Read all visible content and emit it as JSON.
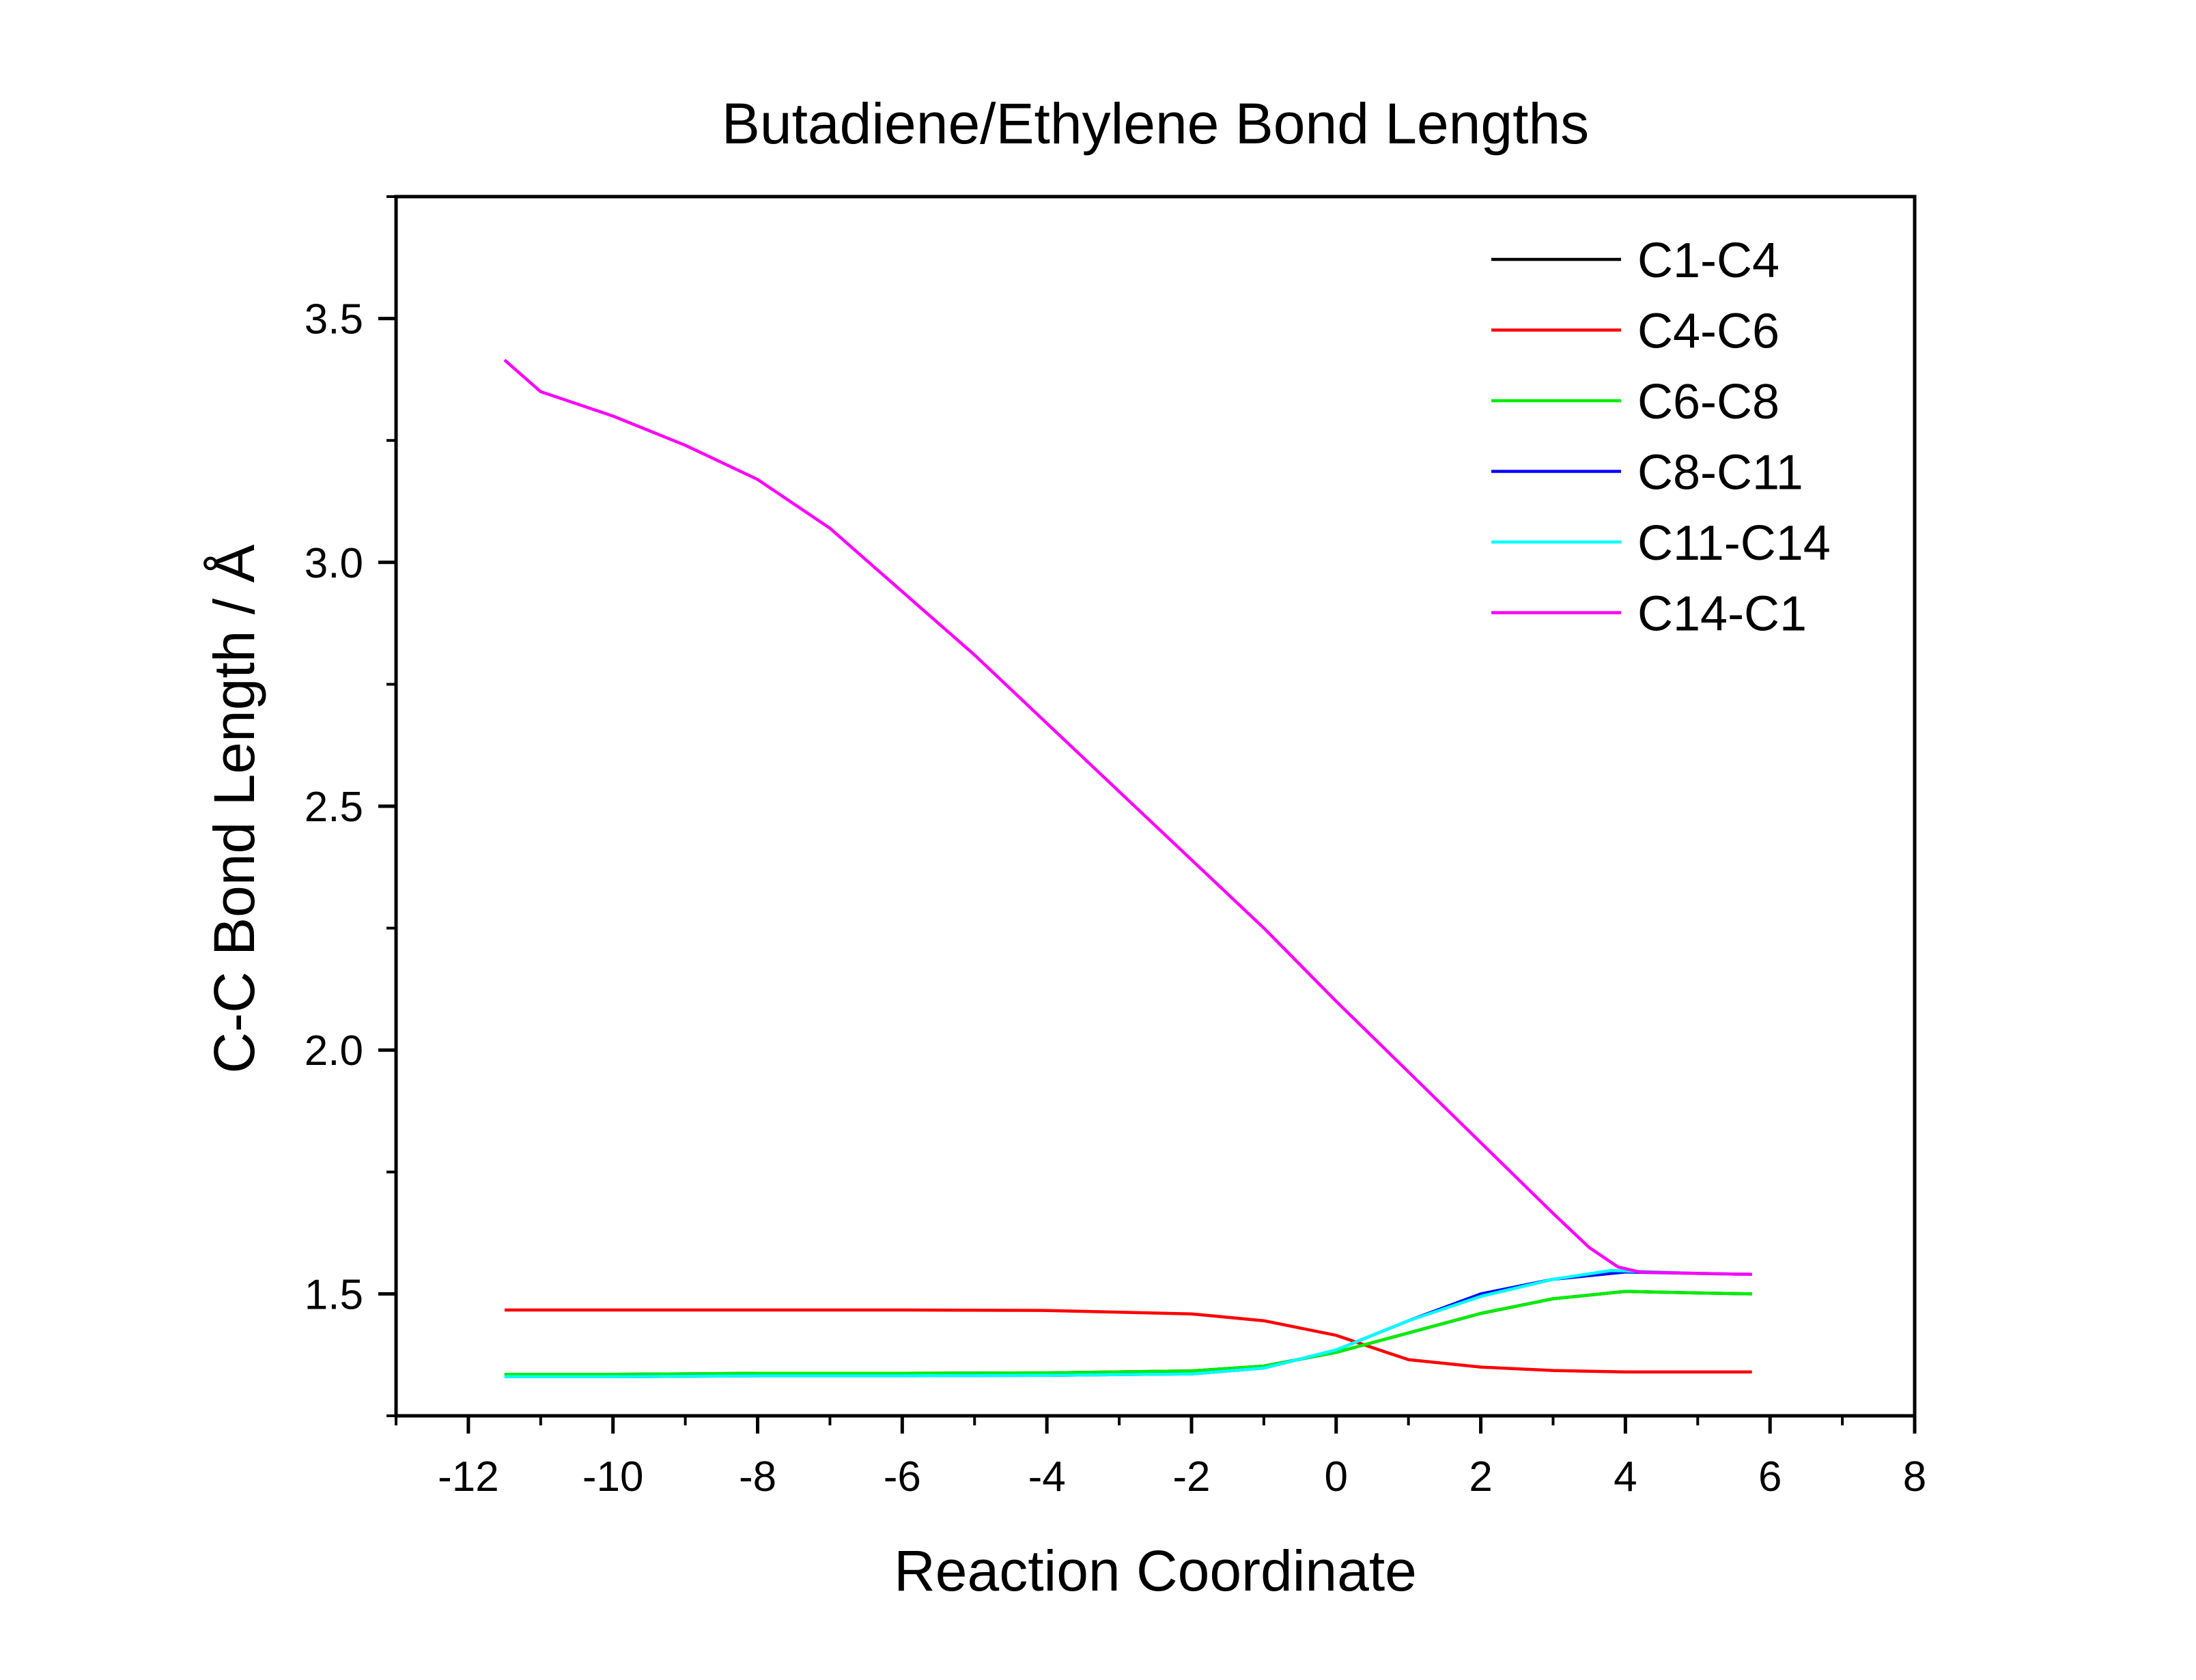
{
  "chart_data": {
    "type": "line",
    "title": "Butadiene/Ethylene Bond Lengths",
    "xlabel": "Reaction Coordinate",
    "ylabel": "C-C Bond Length / Å",
    "xlim": [
      -13,
      8
    ],
    "ylim": [
      1.25,
      3.75
    ],
    "x_ticks": [
      -12,
      -10,
      -8,
      -6,
      -4,
      -2,
      0,
      2,
      4,
      6,
      8
    ],
    "y_ticks": [
      1.5,
      2.0,
      2.5,
      3.0,
      3.5
    ],
    "grid": false,
    "legend_position": "top-right",
    "series": [
      {
        "name": "C1-C4",
        "color": "#000000",
        "x": [
          -11.5,
          -10,
          -8,
          -6,
          -4,
          -2,
          -1,
          0,
          1,
          2,
          3,
          4,
          5,
          5.75
        ],
        "y": [
          1.335,
          1.335,
          1.337,
          1.337,
          1.338,
          1.342,
          1.352,
          1.38,
          1.42,
          1.46,
          1.49,
          1.505,
          1.502,
          1.5
        ]
      },
      {
        "name": "C4-C6",
        "color": "#ff0000",
        "x": [
          -11.5,
          -10,
          -8,
          -6,
          -4,
          -2,
          -1,
          0,
          0.5,
          1,
          2,
          3,
          4,
          5,
          5.75
        ],
        "y": [
          1.467,
          1.467,
          1.467,
          1.467,
          1.466,
          1.459,
          1.445,
          1.415,
          1.39,
          1.365,
          1.35,
          1.343,
          1.34,
          1.34,
          1.34
        ]
      },
      {
        "name": "C6-C8",
        "color": "#00ee00",
        "x": [
          -11.5,
          -10,
          -8,
          -6,
          -4,
          -2,
          -1,
          0,
          1,
          2,
          3,
          4,
          5,
          5.75
        ],
        "y": [
          1.335,
          1.335,
          1.337,
          1.337,
          1.338,
          1.342,
          1.352,
          1.38,
          1.42,
          1.46,
          1.49,
          1.505,
          1.502,
          1.5
        ]
      },
      {
        "name": "C8-C11",
        "color": "#0000ff",
        "x": [
          -11.5,
          -10,
          -8,
          -6,
          -4,
          -2,
          -1,
          0,
          1,
          2,
          3,
          4,
          5,
          5.75
        ],
        "y": [
          1.33,
          1.33,
          1.332,
          1.332,
          1.333,
          1.336,
          1.348,
          1.385,
          1.445,
          1.5,
          1.53,
          1.545,
          1.542,
          1.54
        ]
      },
      {
        "name": "C11-C14",
        "color": "#00ffff",
        "x": [
          -11.5,
          -10,
          -8,
          -6,
          -4,
          -2,
          -1,
          0,
          1,
          2,
          3,
          3.8,
          4.2,
          5,
          5.75
        ],
        "y": [
          1.33,
          1.33,
          1.332,
          1.332,
          1.333,
          1.336,
          1.348,
          1.385,
          1.445,
          1.495,
          1.53,
          1.548,
          1.546,
          1.542,
          1.54
        ]
      },
      {
        "name": "C14-C1",
        "color": "#ff00ff",
        "x": [
          -11.5,
          -11,
          -10,
          -9,
          -8,
          -7,
          -6,
          -5,
          -4,
          -3,
          -2,
          -1,
          0,
          1,
          2,
          3,
          3.5,
          3.9,
          4.2,
          5,
          5.75
        ],
        "y": [
          3.415,
          3.35,
          3.3,
          3.24,
          3.17,
          3.07,
          2.94,
          2.81,
          2.67,
          2.53,
          2.39,
          2.25,
          2.1,
          1.955,
          1.81,
          1.665,
          1.595,
          1.555,
          1.545,
          1.542,
          1.54
        ]
      }
    ]
  }
}
